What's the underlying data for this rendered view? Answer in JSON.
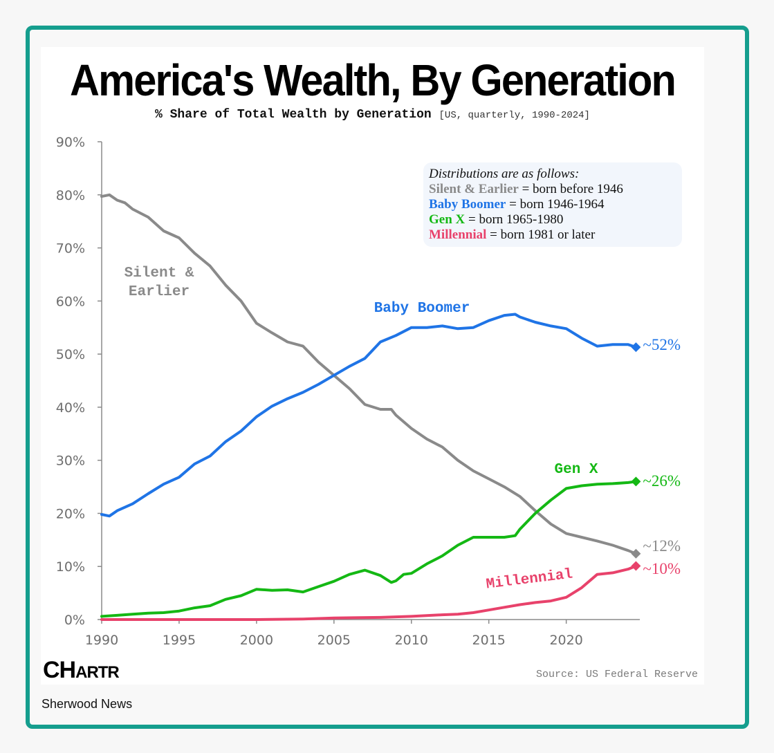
{
  "title": "America's Wealth, By Generation",
  "subtitle_main": "% Share of Total Wealth by Generation",
  "subtitle_detail": "[US, quarterly, 1990-2024]",
  "legend": {
    "heading": "Distributions are as follows:",
    "items": [
      {
        "name": "Silent & Earlier",
        "desc": " = born before 1946",
        "color": "#8a8a8a"
      },
      {
        "name": "Baby Boomer",
        "desc": " = born 1946-1964",
        "color": "#1f74e6"
      },
      {
        "name": "Gen X",
        "desc": " = born 1965-1980",
        "color": "#14b814"
      },
      {
        "name": "Millennial",
        "desc": " = born 1981 or later",
        "color": "#e8426b"
      }
    ]
  },
  "source": "Source: US Federal Reserve",
  "logo": {
    "big": "CH",
    "small": "ARTR"
  },
  "publisher": "Sherwood News",
  "chart_data": {
    "type": "line",
    "ylim": [
      0,
      90
    ],
    "xlim": [
      1990,
      2024.75
    ],
    "yticks": [
      "0%",
      "10%",
      "20%",
      "30%",
      "40%",
      "50%",
      "60%",
      "70%",
      "80%",
      "90%"
    ],
    "xticks": [
      "1990",
      "1995",
      "2000",
      "2005",
      "2010",
      "2015",
      "2020"
    ],
    "series": [
      {
        "name": "Silent & Earlier",
        "label_lines": [
          "Silent &",
          "Earlier"
        ],
        "end_label": "~12%",
        "color": "#8a8a8a",
        "points": [
          [
            1990,
            79.7
          ],
          [
            1990.5,
            80
          ],
          [
            1991,
            79
          ],
          [
            1991.5,
            78.5
          ],
          [
            1992,
            77.3
          ],
          [
            1993,
            75.8
          ],
          [
            1994,
            73.2
          ],
          [
            1995,
            71.9
          ],
          [
            1996,
            69
          ],
          [
            1997,
            66.6
          ],
          [
            1998,
            63
          ],
          [
            1999,
            60
          ],
          [
            2000,
            55.8
          ],
          [
            2001,
            54
          ],
          [
            2002,
            52.3
          ],
          [
            2003,
            51.5
          ],
          [
            2004,
            48.5
          ],
          [
            2005,
            46
          ],
          [
            2006,
            43.5
          ],
          [
            2007,
            40.5
          ],
          [
            2008,
            39.6
          ],
          [
            2008.7,
            39.6
          ],
          [
            2009,
            38.5
          ],
          [
            2010,
            36
          ],
          [
            2011,
            34
          ],
          [
            2012,
            32.5
          ],
          [
            2013,
            30
          ],
          [
            2014,
            28
          ],
          [
            2015,
            26.5
          ],
          [
            2016,
            25
          ],
          [
            2017,
            23.2
          ],
          [
            2018,
            20.5
          ],
          [
            2019,
            18
          ],
          [
            2020,
            16.2
          ],
          [
            2021,
            15.5
          ],
          [
            2022,
            14.8
          ],
          [
            2023,
            14
          ],
          [
            2024,
            13
          ],
          [
            2024.5,
            12.4
          ]
        ]
      },
      {
        "name": "Baby Boomer",
        "label_lines": [
          "Baby Boomer"
        ],
        "end_label": "~52%",
        "color": "#1f74e6",
        "points": [
          [
            1990,
            19.8
          ],
          [
            1990.5,
            19.5
          ],
          [
            1991,
            20.5
          ],
          [
            1992,
            21.8
          ],
          [
            1993,
            23.7
          ],
          [
            1994,
            25.5
          ],
          [
            1995,
            26.8
          ],
          [
            1996,
            29.3
          ],
          [
            1997,
            30.8
          ],
          [
            1998,
            33.5
          ],
          [
            1999,
            35.5
          ],
          [
            2000,
            38.2
          ],
          [
            2001,
            40.2
          ],
          [
            2002,
            41.6
          ],
          [
            2003,
            42.8
          ],
          [
            2004,
            44.3
          ],
          [
            2005,
            46
          ],
          [
            2006,
            47.7
          ],
          [
            2007,
            49.2
          ],
          [
            2008,
            52.3
          ],
          [
            2009,
            53.5
          ],
          [
            2010,
            55
          ],
          [
            2011,
            55
          ],
          [
            2012,
            55.3
          ],
          [
            2013,
            54.8
          ],
          [
            2014,
            55
          ],
          [
            2015,
            56.3
          ],
          [
            2016,
            57.3
          ],
          [
            2016.7,
            57.5
          ],
          [
            2017,
            57
          ],
          [
            2018,
            56
          ],
          [
            2019,
            55.3
          ],
          [
            2020,
            54.8
          ],
          [
            2021,
            53
          ],
          [
            2022,
            51.5
          ],
          [
            2023,
            51.8
          ],
          [
            2024,
            51.8
          ],
          [
            2024.5,
            51.3
          ]
        ]
      },
      {
        "name": "Gen X",
        "label_lines": [
          "Gen X"
        ],
        "end_label": "~26%",
        "color": "#14b814",
        "points": [
          [
            1990,
            0.6
          ],
          [
            1991,
            0.8
          ],
          [
            1992,
            1
          ],
          [
            1993,
            1.2
          ],
          [
            1994,
            1.3
          ],
          [
            1995,
            1.6
          ],
          [
            1996,
            2.2
          ],
          [
            1997,
            2.6
          ],
          [
            1998,
            3.8
          ],
          [
            1999,
            4.5
          ],
          [
            2000,
            5.7
          ],
          [
            2001,
            5.5
          ],
          [
            2002,
            5.6
          ],
          [
            2003,
            5.2
          ],
          [
            2004,
            6.2
          ],
          [
            2005,
            7.2
          ],
          [
            2006,
            8.5
          ],
          [
            2007,
            9.3
          ],
          [
            2008,
            8.3
          ],
          [
            2008.7,
            7
          ],
          [
            2009,
            7.3
          ],
          [
            2009.5,
            8.5
          ],
          [
            2010,
            8.7
          ],
          [
            2011,
            10.5
          ],
          [
            2012,
            12
          ],
          [
            2013,
            14
          ],
          [
            2014,
            15.5
          ],
          [
            2015,
            15.5
          ],
          [
            2016,
            15.5
          ],
          [
            2016.7,
            15.8
          ],
          [
            2017,
            17
          ],
          [
            2018,
            20
          ],
          [
            2019,
            22.5
          ],
          [
            2020,
            24.7
          ],
          [
            2021,
            25.2
          ],
          [
            2022,
            25.5
          ],
          [
            2023,
            25.6
          ],
          [
            2024,
            25.8
          ],
          [
            2024.5,
            26
          ]
        ]
      },
      {
        "name": "Millennial",
        "label_lines": [
          "Millennial"
        ],
        "end_label": "~10%",
        "color": "#e8426b",
        "points": [
          [
            1990,
            0
          ],
          [
            2000,
            0
          ],
          [
            2003,
            0.1
          ],
          [
            2005,
            0.3
          ],
          [
            2008,
            0.4
          ],
          [
            2010,
            0.6
          ],
          [
            2012,
            0.9
          ],
          [
            2013,
            1
          ],
          [
            2014,
            1.3
          ],
          [
            2015,
            1.8
          ],
          [
            2016,
            2.3
          ],
          [
            2017,
            2.8
          ],
          [
            2018,
            3.2
          ],
          [
            2019,
            3.5
          ],
          [
            2020,
            4.2
          ],
          [
            2021,
            6
          ],
          [
            2022,
            8.5
          ],
          [
            2023,
            8.8
          ],
          [
            2024,
            9.5
          ],
          [
            2024.5,
            10.1
          ]
        ]
      }
    ]
  }
}
